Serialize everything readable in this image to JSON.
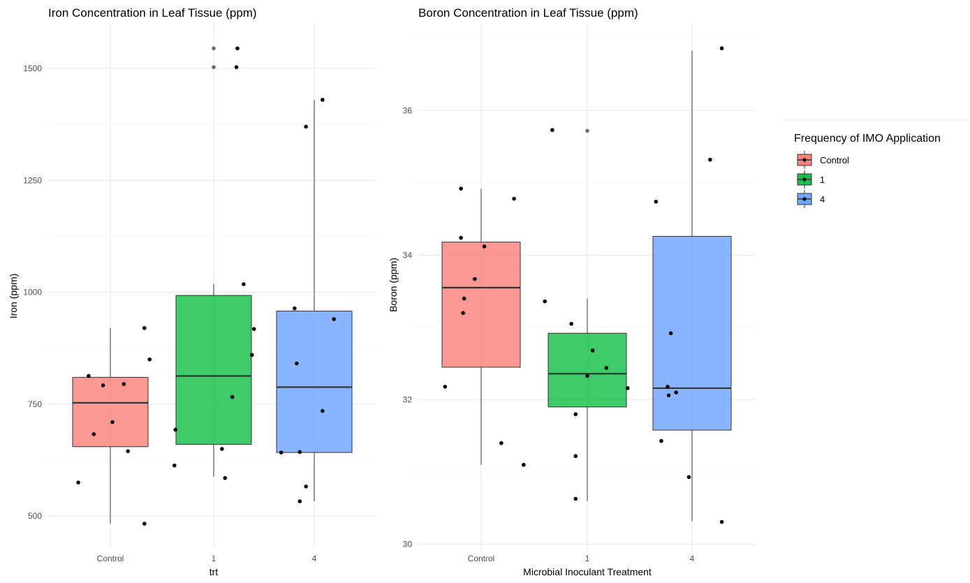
{
  "legend": {
    "title": "Frequency of IMO Application",
    "placement": "right",
    "items": [
      {
        "label": "Control",
        "color": "#F8766D"
      },
      {
        "label": "1",
        "color": "#00BA38"
      },
      {
        "label": "4",
        "color": "#619CFF"
      }
    ]
  },
  "chart_data": [
    {
      "type": "box",
      "title": "Iron Concentration in Leaf Tissue (ppm)",
      "xlabel": "trt",
      "ylabel": "Iron (ppm)",
      "categories": [
        "Control",
        "1",
        "4"
      ],
      "ylim": [
        430,
        1600
      ],
      "yticks": [
        500,
        750,
        1000,
        1250,
        1500
      ],
      "grid": true,
      "boxes": [
        {
          "category": "Control",
          "color": "#F8766D",
          "q1": 655,
          "median": 753,
          "q3": 810,
          "whisker_low": 483,
          "whisker_high": 920,
          "outliers": []
        },
        {
          "category": "1",
          "color": "#00BA38",
          "q1": 660,
          "median": 813,
          "q3": 993,
          "whisker_low": 588,
          "whisker_high": 1018,
          "outliers": [
            1545,
            1503
          ]
        },
        {
          "category": "4",
          "color": "#619CFF",
          "q1": 642,
          "median": 788,
          "q3": 958,
          "whisker_low": 533,
          "whisker_high": 1430,
          "outliers": []
        }
      ],
      "points": [
        {
          "category": "Control",
          "jitter": -0.31,
          "y": 575
        },
        {
          "category": "Control",
          "jitter": -0.21,
          "y": 813
        },
        {
          "category": "Control",
          "jitter": -0.16,
          "y": 683
        },
        {
          "category": "Control",
          "jitter": -0.07,
          "y": 792
        },
        {
          "category": "Control",
          "jitter": 0.02,
          "y": 710
        },
        {
          "category": "Control",
          "jitter": 0.13,
          "y": 795
        },
        {
          "category": "Control",
          "jitter": 0.17,
          "y": 645
        },
        {
          "category": "Control",
          "jitter": 0.33,
          "y": 483
        },
        {
          "category": "Control",
          "jitter": 0.33,
          "y": 920
        },
        {
          "category": "Control",
          "jitter": 0.38,
          "y": 850
        },
        {
          "category": "1",
          "jitter": -0.38,
          "y": 613
        },
        {
          "category": "1",
          "jitter": -0.37,
          "y": 693
        },
        {
          "category": "1",
          "jitter": 0.08,
          "y": 650
        },
        {
          "category": "1",
          "jitter": 0.11,
          "y": 585
        },
        {
          "category": "1",
          "jitter": 0.18,
          "y": 766
        },
        {
          "category": "1",
          "jitter": 0.22,
          "y": 1503
        },
        {
          "category": "1",
          "jitter": 0.23,
          "y": 1545
        },
        {
          "category": "1",
          "jitter": 0.29,
          "y": 1018
        },
        {
          "category": "1",
          "jitter": 0.37,
          "y": 860
        },
        {
          "category": "1",
          "jitter": 0.39,
          "y": 918
        },
        {
          "category": "4",
          "jitter": -0.32,
          "y": 642
        },
        {
          "category": "4",
          "jitter": -0.19,
          "y": 964
        },
        {
          "category": "4",
          "jitter": -0.17,
          "y": 841
        },
        {
          "category": "4",
          "jitter": -0.14,
          "y": 533
        },
        {
          "category": "4",
          "jitter": -0.14,
          "y": 643
        },
        {
          "category": "4",
          "jitter": -0.08,
          "y": 1370
        },
        {
          "category": "4",
          "jitter": -0.08,
          "y": 566
        },
        {
          "category": "4",
          "jitter": 0.08,
          "y": 735
        },
        {
          "category": "4",
          "jitter": 0.08,
          "y": 1430
        },
        {
          "category": "4",
          "jitter": 0.19,
          "y": 940
        }
      ]
    },
    {
      "type": "box",
      "title": "Boron Concentration in Leaf Tissue (ppm)",
      "xlabel": "Microbial Inoculant Treatment",
      "ylabel": "Boron (ppm)",
      "categories": [
        "Control",
        "1",
        "4"
      ],
      "ylim": [
        29.9,
        37.2
      ],
      "yticks": [
        30,
        32,
        34,
        36
      ],
      "grid": true,
      "boxes": [
        {
          "category": "Control",
          "color": "#F8766D",
          "q1": 32.45,
          "median": 33.55,
          "q3": 34.18,
          "whisker_low": 31.1,
          "whisker_high": 34.92,
          "outliers": []
        },
        {
          "category": "1",
          "color": "#00BA38",
          "q1": 31.9,
          "median": 32.36,
          "q3": 32.92,
          "whisker_low": 30.6,
          "whisker_high": 33.4,
          "outliers": [
            35.72
          ]
        },
        {
          "category": "4",
          "color": "#619CFF",
          "q1": 31.58,
          "median": 32.16,
          "q3": 34.26,
          "whisker_low": 30.32,
          "whisker_high": 36.83,
          "outliers": []
        }
      ],
      "points": [
        {
          "category": "Control",
          "jitter": -0.34,
          "y": 32.18
        },
        {
          "category": "Control",
          "jitter": -0.19,
          "y": 34.92
        },
        {
          "category": "Control",
          "jitter": -0.19,
          "y": 34.24
        },
        {
          "category": "Control",
          "jitter": -0.17,
          "y": 33.2
        },
        {
          "category": "Control",
          "jitter": -0.16,
          "y": 33.4
        },
        {
          "category": "Control",
          "jitter": -0.06,
          "y": 33.67
        },
        {
          "category": "Control",
          "jitter": 0.03,
          "y": 34.12
        },
        {
          "category": "Control",
          "jitter": 0.19,
          "y": 31.4
        },
        {
          "category": "Control",
          "jitter": 0.31,
          "y": 34.78
        },
        {
          "category": "Control",
          "jitter": 0.4,
          "y": 31.1
        },
        {
          "category": "1",
          "jitter": -0.4,
          "y": 33.36
        },
        {
          "category": "1",
          "jitter": -0.33,
          "y": 35.73
        },
        {
          "category": "1",
          "jitter": -0.15,
          "y": 33.05
        },
        {
          "category": "1",
          "jitter": -0.11,
          "y": 31.8
        },
        {
          "category": "1",
          "jitter": -0.11,
          "y": 31.22
        },
        {
          "category": "1",
          "jitter": -0.11,
          "y": 30.63
        },
        {
          "category": "1",
          "jitter": 0.0,
          "y": 32.33
        },
        {
          "category": "1",
          "jitter": 0.05,
          "y": 32.68
        },
        {
          "category": "1",
          "jitter": 0.18,
          "y": 32.44
        },
        {
          "category": "1",
          "jitter": 0.38,
          "y": 32.16
        },
        {
          "category": "4",
          "jitter": -0.34,
          "y": 34.74
        },
        {
          "category": "4",
          "jitter": -0.29,
          "y": 31.43
        },
        {
          "category": "4",
          "jitter": -0.23,
          "y": 32.18
        },
        {
          "category": "4",
          "jitter": -0.22,
          "y": 32.06
        },
        {
          "category": "4",
          "jitter": -0.2,
          "y": 32.92
        },
        {
          "category": "4",
          "jitter": -0.15,
          "y": 32.1
        },
        {
          "category": "4",
          "jitter": -0.03,
          "y": 30.93
        },
        {
          "category": "4",
          "jitter": 0.17,
          "y": 35.32
        },
        {
          "category": "4",
          "jitter": 0.28,
          "y": 36.86
        },
        {
          "category": "4",
          "jitter": 0.28,
          "y": 30.31
        }
      ]
    }
  ]
}
